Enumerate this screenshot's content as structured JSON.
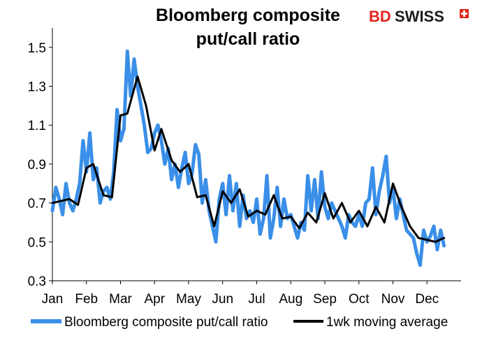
{
  "chart_data": {
    "type": "line",
    "title_line1": "Bloomberg composite",
    "title_line2": "put/call ratio",
    "ylim": [
      0.3,
      1.6
    ],
    "yticks": [
      0.3,
      0.5,
      0.7,
      0.9,
      1.1,
      1.3,
      1.5
    ],
    "ytick_labels": [
      "0.3",
      "0.5",
      "0.7",
      "0.9",
      "1.1",
      "1.3",
      "1.5"
    ],
    "xticks": [
      "Jan",
      "Feb",
      "Mar",
      "Apr",
      "May",
      "Jun",
      "Jul",
      "Aug",
      "Sep",
      "Oct",
      "Nov",
      "Dec"
    ],
    "grid": false,
    "legend_position": "bottom",
    "series": [
      {
        "name": "Bloomberg composite put/call ratio",
        "color": "#3a8fe8",
        "x": [
          0.0,
          0.1,
          0.2,
          0.3,
          0.4,
          0.5,
          0.6,
          0.7,
          0.8,
          0.9,
          1.0,
          1.1,
          1.2,
          1.3,
          1.4,
          1.5,
          1.6,
          1.7,
          1.8,
          1.9,
          2.0,
          2.1,
          2.2,
          2.3,
          2.4,
          2.5,
          2.6,
          2.7,
          2.8,
          2.9,
          3.0,
          3.1,
          3.2,
          3.3,
          3.4,
          3.5,
          3.6,
          3.7,
          3.8,
          3.9,
          4.0,
          4.1,
          4.2,
          4.3,
          4.4,
          4.5,
          4.6,
          4.7,
          4.8,
          4.9,
          5.0,
          5.1,
          5.2,
          5.3,
          5.4,
          5.5,
          5.6,
          5.7,
          5.8,
          5.9,
          6.0,
          6.1,
          6.2,
          6.3,
          6.4,
          6.5,
          6.6,
          6.7,
          6.8,
          6.9,
          7.0,
          7.1,
          7.2,
          7.3,
          7.4,
          7.5,
          7.6,
          7.7,
          7.8,
          7.9,
          8.0,
          8.1,
          8.2,
          8.3,
          8.4,
          8.5,
          8.6,
          8.7,
          8.8,
          8.9,
          9.0,
          9.1,
          9.2,
          9.3,
          9.4,
          9.5,
          9.6,
          9.7,
          9.8,
          9.9,
          10.0,
          10.1,
          10.2,
          10.3,
          10.4,
          10.5,
          10.6,
          10.7,
          10.8,
          10.9,
          11.0,
          11.1,
          11.2,
          11.3,
          11.4,
          11.5
        ],
        "values": [
          0.66,
          0.78,
          0.72,
          0.64,
          0.8,
          0.7,
          0.66,
          0.72,
          0.8,
          1.02,
          0.86,
          1.06,
          0.82,
          0.88,
          0.7,
          0.76,
          0.78,
          0.72,
          0.86,
          1.18,
          1.02,
          1.08,
          1.48,
          1.25,
          1.44,
          1.3,
          1.2,
          1.1,
          0.96,
          0.98,
          1.06,
          1.1,
          1.02,
          0.9,
          0.98,
          0.82,
          0.9,
          0.78,
          0.88,
          0.96,
          0.8,
          0.85,
          1.0,
          0.95,
          0.7,
          0.82,
          0.66,
          0.58,
          0.5,
          0.72,
          0.8,
          0.64,
          0.84,
          0.66,
          0.8,
          0.58,
          0.74,
          0.62,
          0.66,
          0.6,
          0.72,
          0.54,
          0.62,
          0.84,
          0.52,
          0.62,
          0.78,
          0.58,
          0.72,
          0.62,
          0.64,
          0.58,
          0.52,
          0.6,
          0.56,
          0.84,
          0.66,
          0.82,
          0.62,
          0.86,
          0.68,
          0.62,
          0.7,
          0.66,
          0.62,
          0.58,
          0.52,
          0.64,
          0.6,
          0.58,
          0.64,
          0.58,
          0.7,
          0.72,
          0.88,
          0.64,
          0.76,
          0.84,
          0.94,
          0.7,
          0.78,
          0.62,
          0.72,
          0.64,
          0.56,
          0.54,
          0.52,
          0.44,
          0.38,
          0.56,
          0.5,
          0.53,
          0.58,
          0.46,
          0.56,
          0.48
        ]
      },
      {
        "name": "1wk moving average",
        "color": "#000000",
        "x": [
          0.0,
          0.25,
          0.5,
          0.75,
          1.0,
          1.2,
          1.5,
          1.75,
          2.0,
          2.2,
          2.5,
          2.75,
          3.0,
          3.2,
          3.5,
          3.75,
          4.0,
          4.25,
          4.5,
          4.75,
          5.0,
          5.25,
          5.5,
          5.75,
          6.0,
          6.25,
          6.5,
          6.75,
          7.0,
          7.25,
          7.5,
          7.75,
          8.0,
          8.25,
          8.5,
          8.75,
          9.0,
          9.25,
          9.5,
          9.75,
          10.0,
          10.25,
          10.5,
          10.75,
          11.0,
          11.25,
          11.5
        ],
        "values": [
          0.7,
          0.71,
          0.72,
          0.69,
          0.88,
          0.9,
          0.74,
          0.73,
          1.15,
          1.16,
          1.35,
          1.2,
          0.97,
          1.08,
          0.92,
          0.86,
          0.9,
          0.73,
          0.74,
          0.58,
          0.76,
          0.7,
          0.77,
          0.63,
          0.66,
          0.64,
          0.74,
          0.62,
          0.63,
          0.57,
          0.65,
          0.6,
          0.75,
          0.62,
          0.7,
          0.6,
          0.66,
          0.58,
          0.68,
          0.6,
          0.8,
          0.68,
          0.58,
          0.52,
          0.51,
          0.5,
          0.52
        ]
      }
    ]
  },
  "brand": {
    "text_bd": "BD",
    "text_swiss": "SWISS",
    "bd_color": "#e1251b",
    "swiss_color": "#1b1b1b",
    "flag_color": "#e1251b"
  }
}
